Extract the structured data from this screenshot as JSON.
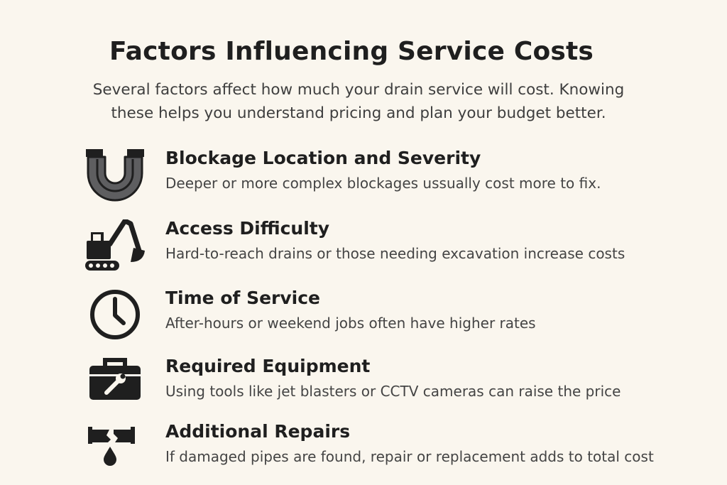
{
  "page": {
    "title": "Factors Influencing Service Costs",
    "intro_line1": "Several factors affect how much your drain service will cost. Knowing",
    "intro_line2": "these helps you understand pricing and plan your budget better."
  },
  "factors": [
    {
      "icon": "u-pipe-icon",
      "heading": "Blockage Location and Severity",
      "description": "Deeper or more complex blockages ussually cost more to fix."
    },
    {
      "icon": "excavator-icon",
      "heading": "Access Difficulty",
      "description": "Hard-to-reach drains or  those needing excavation increase costs"
    },
    {
      "icon": "clock-icon",
      "heading": "Time of Service",
      "description": "After-hours or weekend jobs often have higher rates"
    },
    {
      "icon": "toolbox-wrench-icon",
      "heading": "Required Equipment",
      "description": "Using tools like jet blasters or CCTV cameras can raise the price"
    },
    {
      "icon": "broken-pipe-leak-icon",
      "heading": "Additional Repairs",
      "description": "If damaged pipes are found, repair or replacement adds to total cost"
    }
  ],
  "colors": {
    "background": "#faf6ee",
    "text": "#1f1f1f",
    "pipe_gray": "#5e5e60"
  }
}
